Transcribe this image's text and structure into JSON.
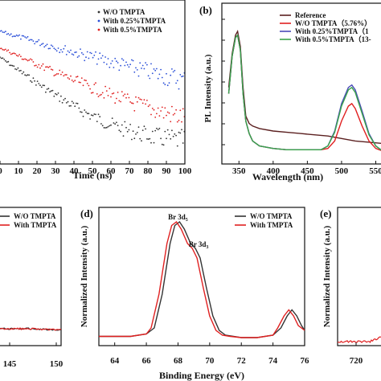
{
  "chart_data": [
    {
      "id": "a",
      "type": "scatter",
      "xlabel": "Time (ns)",
      "x_ticks": [
        0,
        10,
        20,
        30,
        40,
        50,
        60,
        70,
        80,
        90,
        100
      ],
      "xlim": [
        0,
        100
      ],
      "ylog": true,
      "legend_position": "top-right",
      "series": [
        {
          "name": "W/O TMPTA",
          "color": "#333333",
          "tau": 18
        },
        {
          "name": "With 0.25%TMPTA",
          "color": "#2a4fd8",
          "tau": 45
        },
        {
          "name": "With 0.5%TMPTA",
          "color": "#e02020",
          "tau": 28
        }
      ]
    },
    {
      "id": "b",
      "panel_label": "(b)",
      "type": "line",
      "xlabel": "Wavelength (nm)",
      "ylabel": "PL Intensity (a.u.)",
      "x_ticks": [
        350,
        400,
        450,
        500,
        550
      ],
      "xlim": [
        325,
        560
      ],
      "legend_position": "top-right",
      "series": [
        {
          "name": "Reference",
          "color": "#5b2020",
          "x": [
            335,
            340,
            345,
            348,
            352,
            356,
            360,
            365,
            370,
            380,
            400,
            420,
            440,
            460,
            480,
            500,
            520,
            540,
            560
          ],
          "y": [
            0.55,
            0.82,
            0.97,
            1.0,
            0.88,
            0.55,
            0.32,
            0.26,
            0.24,
            0.22,
            0.2,
            0.19,
            0.18,
            0.17,
            0.16,
            0.14,
            0.12,
            0.11,
            0.1
          ]
        },
        {
          "name": "W/O TMPTA（5.76%）",
          "color": "#e02020",
          "x": [
            335,
            340,
            345,
            348,
            352,
            356,
            360,
            365,
            370,
            380,
            400,
            420,
            440,
            460,
            470,
            480,
            490,
            500,
            510,
            515,
            520,
            530,
            540,
            550,
            560
          ],
          "y": [
            0.5,
            0.8,
            0.95,
            0.97,
            0.85,
            0.5,
            0.28,
            0.18,
            0.12,
            0.08,
            0.06,
            0.05,
            0.05,
            0.05,
            0.05,
            0.06,
            0.12,
            0.28,
            0.4,
            0.42,
            0.38,
            0.24,
            0.12,
            0.06,
            0.04
          ]
        },
        {
          "name": "With 0.25%TMPTA（1",
          "color": "#4a4ab8",
          "x": [
            335,
            340,
            345,
            348,
            352,
            356,
            360,
            365,
            370,
            380,
            400,
            420,
            440,
            460,
            470,
            480,
            490,
            500,
            510,
            515,
            520,
            530,
            540,
            550,
            560
          ],
          "y": [
            0.5,
            0.8,
            0.95,
            0.97,
            0.85,
            0.5,
            0.28,
            0.18,
            0.12,
            0.08,
            0.06,
            0.05,
            0.05,
            0.05,
            0.05,
            0.08,
            0.2,
            0.42,
            0.55,
            0.57,
            0.53,
            0.36,
            0.18,
            0.08,
            0.04
          ]
        },
        {
          "name": "With 0.5%TMPTA（13-",
          "color": "#3aa34a",
          "x": [
            335,
            340,
            345,
            348,
            352,
            356,
            360,
            365,
            370,
            380,
            400,
            420,
            440,
            460,
            470,
            480,
            490,
            500,
            510,
            515,
            520,
            530,
            540,
            550,
            560
          ],
          "y": [
            0.5,
            0.8,
            0.95,
            0.97,
            0.85,
            0.5,
            0.28,
            0.18,
            0.12,
            0.08,
            0.06,
            0.05,
            0.05,
            0.05,
            0.05,
            0.08,
            0.19,
            0.4,
            0.53,
            0.55,
            0.51,
            0.34,
            0.17,
            0.08,
            0.04
          ]
        }
      ]
    },
    {
      "id": "c",
      "type": "line",
      "x_ticks": [
        145,
        150
      ],
      "legend_position": "top-right",
      "series": [
        {
          "name": "W/O TMPTA",
          "color": "#333333"
        },
        {
          "name": "With TMPTA",
          "color": "#e02020"
        }
      ]
    },
    {
      "id": "d",
      "panel_label": "(d)",
      "type": "line",
      "xlabel": "Binding Energy (eV)",
      "ylabel": "Normalized Intensity (a.u.)",
      "x_ticks": [
        64,
        66,
        68,
        70,
        72,
        74,
        76
      ],
      "xlim": [
        63,
        76
      ],
      "legend_position": "top-right",
      "annotations": [
        {
          "text": "Br 3d",
          "sub": "5",
          "x": 68.1
        },
        {
          "text": "Br 3d",
          "sub": "3",
          "x": 69.1
        }
      ],
      "series": [
        {
          "name": "W/O TMPTA",
          "color": "#333333",
          "x": [
            63,
            64,
            65,
            66,
            66.5,
            67,
            67.5,
            67.8,
            68.1,
            68.4,
            68.8,
            69.1,
            69.4,
            69.8,
            70.2,
            70.6,
            71,
            71.5,
            72,
            73,
            74,
            74.5,
            74.9,
            75.2,
            75.5,
            75.8,
            76
          ],
          "y": [
            0.05,
            0.05,
            0.05,
            0.07,
            0.12,
            0.4,
            0.82,
            0.97,
            1.0,
            0.94,
            0.82,
            0.78,
            0.7,
            0.45,
            0.22,
            0.1,
            0.06,
            0.05,
            0.04,
            0.04,
            0.06,
            0.12,
            0.22,
            0.27,
            0.22,
            0.14,
            0.1
          ]
        },
        {
          "name": "With TMPTA",
          "color": "#e02020",
          "x": [
            63,
            64,
            65,
            66,
            66.3,
            66.8,
            67.3,
            67.6,
            67.9,
            68.2,
            68.6,
            68.9,
            69.2,
            69.6,
            70,
            70.4,
            70.8,
            71.3,
            72,
            73,
            74,
            74.3,
            74.7,
            75,
            75.3,
            75.6,
            76
          ],
          "y": [
            0.05,
            0.05,
            0.05,
            0.07,
            0.12,
            0.4,
            0.82,
            0.97,
            1.0,
            0.94,
            0.82,
            0.78,
            0.7,
            0.45,
            0.22,
            0.1,
            0.06,
            0.05,
            0.04,
            0.04,
            0.06,
            0.12,
            0.22,
            0.27,
            0.22,
            0.14,
            0.1
          ]
        }
      ]
    },
    {
      "id": "e",
      "panel_label": "(e)",
      "type": "line",
      "ylabel": "Normalized Intensity (a.u.)",
      "x_ticks": [
        720
      ],
      "series": [
        {
          "name": "",
          "color": "#e02020"
        }
      ]
    }
  ]
}
